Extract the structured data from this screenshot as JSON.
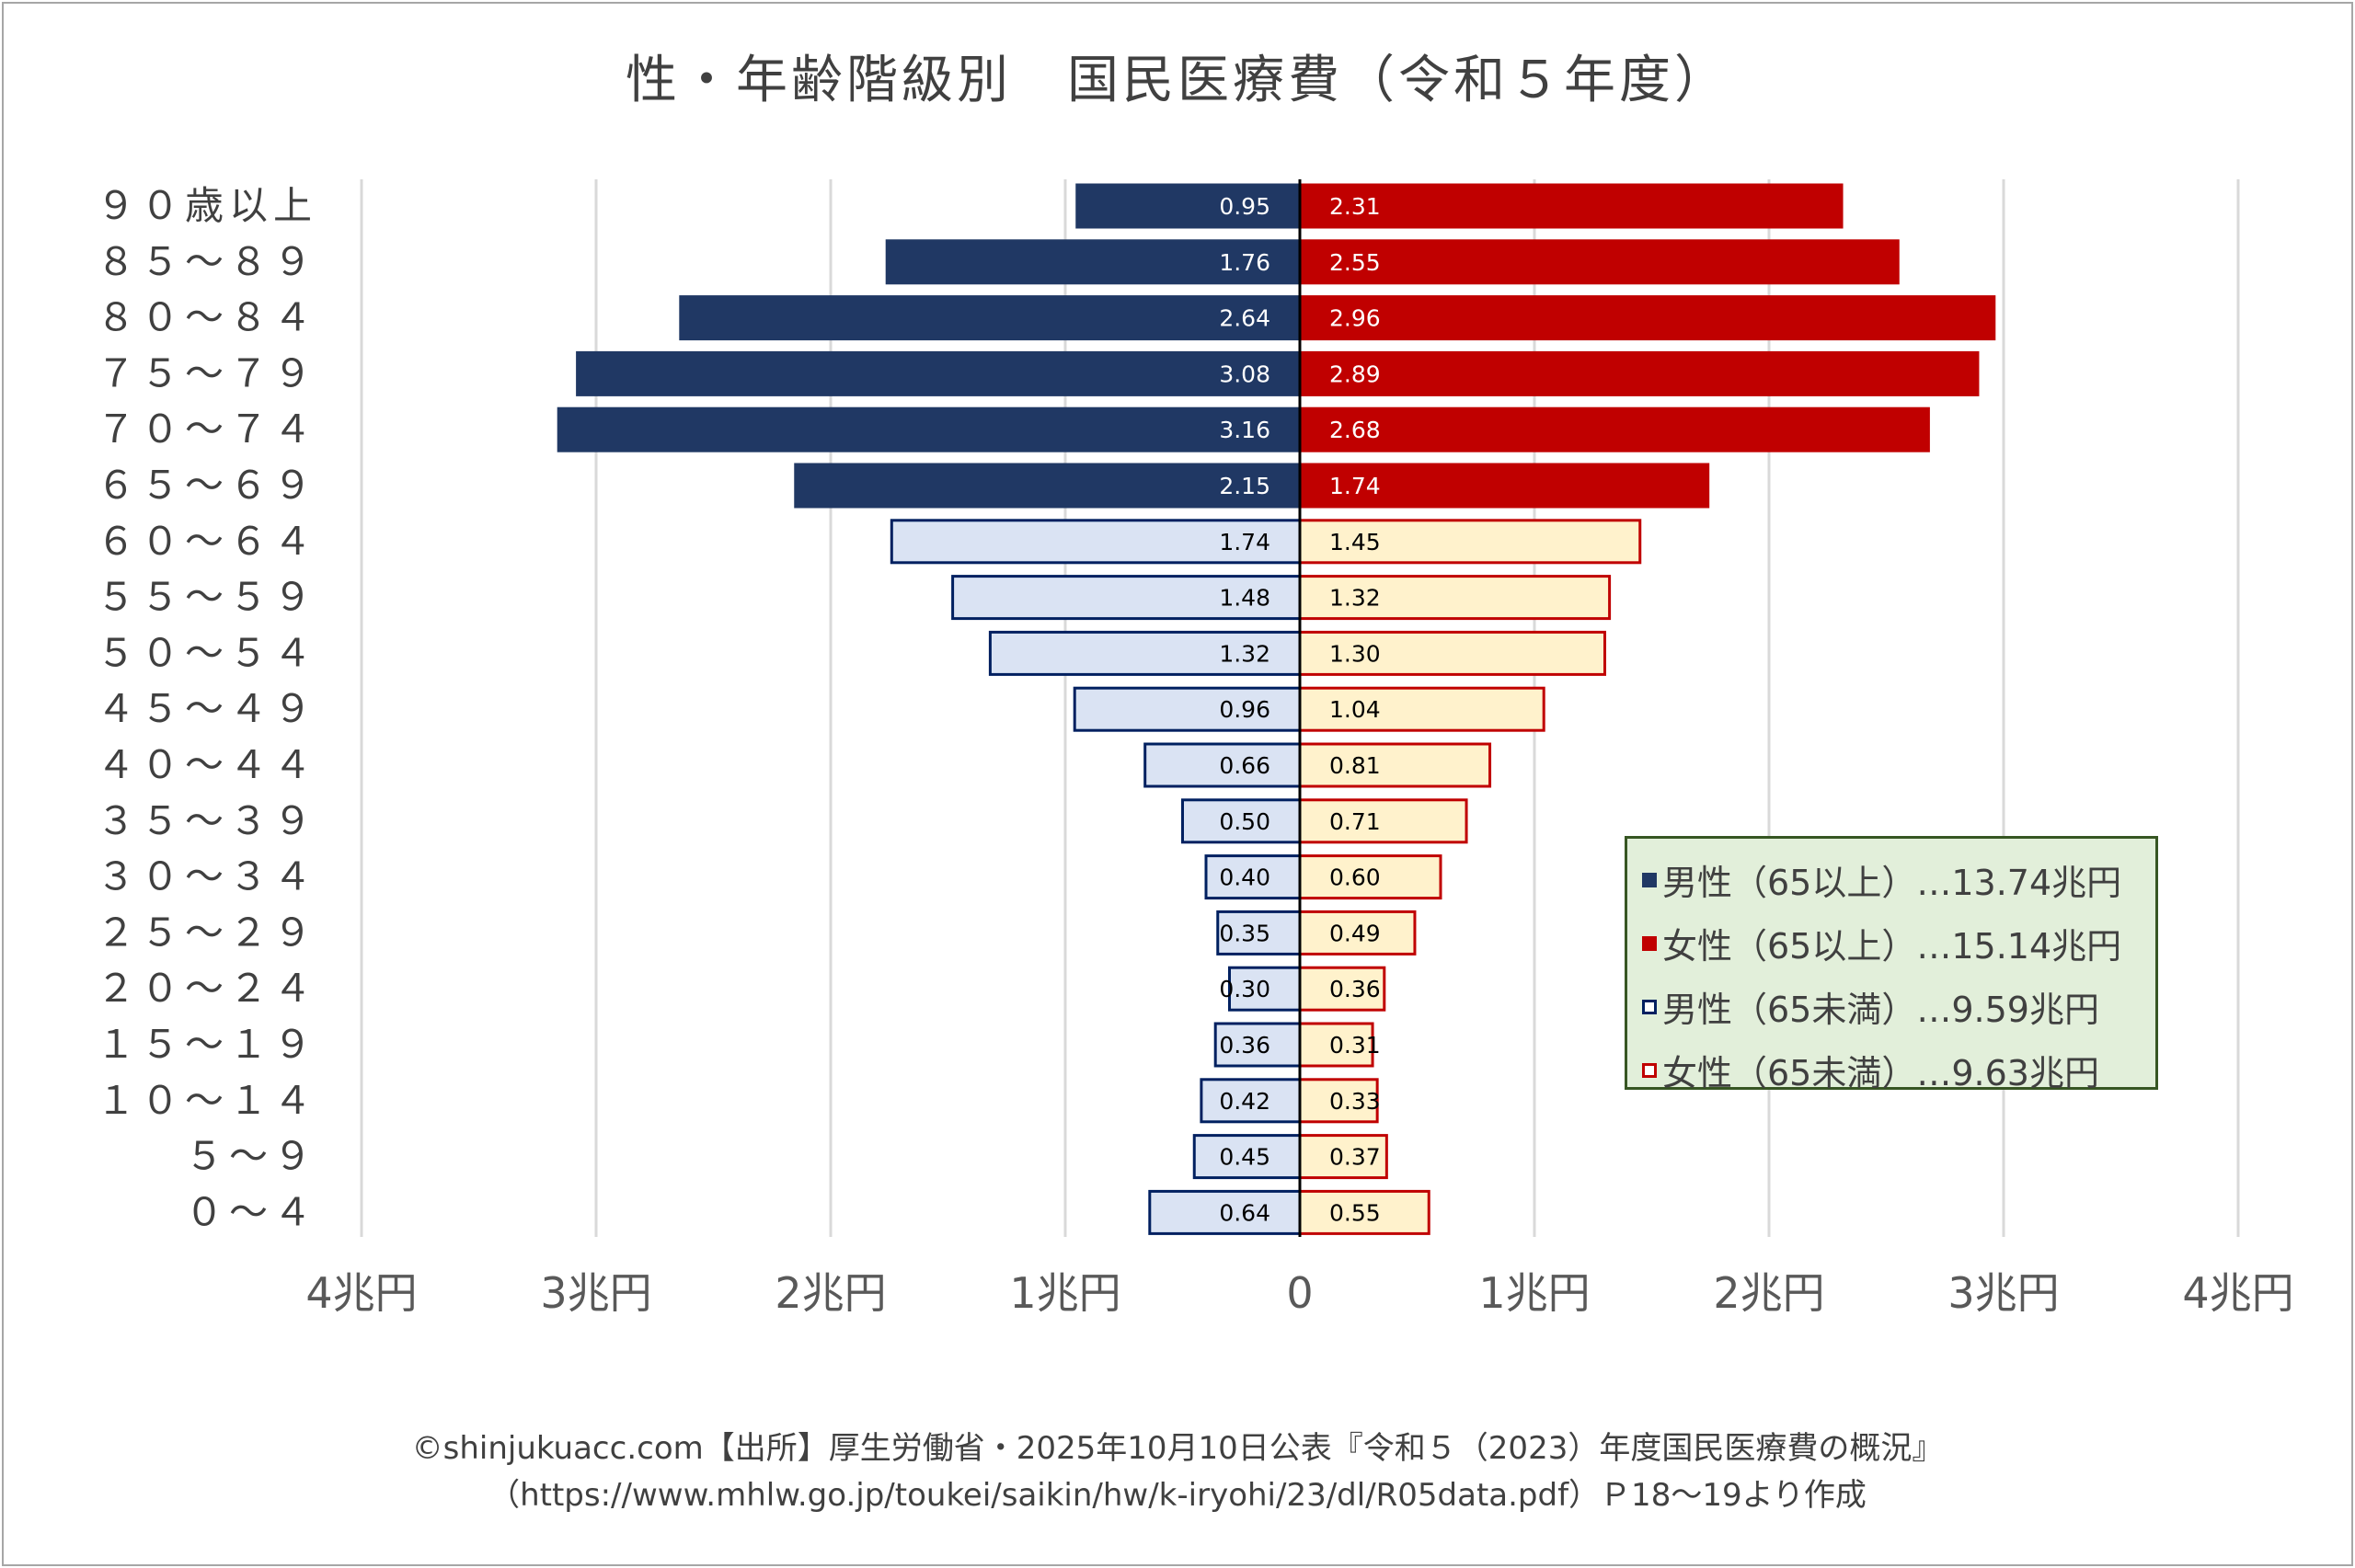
{
  "title": "性・年齢階級別　国民医療費（令和５年度）",
  "chart_data": {
    "type": "bar",
    "orientation": "horizontal-diverging",
    "title": "性・年齢階級別　国民医療費（令和５年度）",
    "categories": [
      "９０歳以上",
      "８５～８９",
      "８０～８４",
      "７５～７９",
      "７０～７４",
      "６５～６９",
      "６０～６４",
      "５５～５９",
      "５０～５４",
      "４５～４９",
      "４０～４４",
      "３５～３９",
      "３０～３４",
      "２５～２９",
      "２０～２４",
      "１５～１９",
      "１０～１４",
      "５～９",
      "０～４"
    ],
    "series": [
      {
        "name": "男性",
        "side": "left",
        "values": [
          0.95,
          1.76,
          2.64,
          3.08,
          3.16,
          2.15,
          1.74,
          1.48,
          1.32,
          0.96,
          0.66,
          0.5,
          0.4,
          0.35,
          0.3,
          0.36,
          0.42,
          0.45,
          0.64
        ]
      },
      {
        "name": "女性",
        "side": "right",
        "values": [
          2.31,
          2.55,
          2.96,
          2.89,
          2.68,
          1.74,
          1.45,
          1.32,
          1.3,
          1.04,
          0.81,
          0.71,
          0.6,
          0.49,
          0.36,
          0.31,
          0.33,
          0.37,
          0.55
        ]
      }
    ],
    "value_labels": {
      "male": [
        "0.95",
        "1.76",
        "2.64",
        "3.08",
        "3.16",
        "2.15",
        "1.74",
        "1.48",
        "1.32",
        "0.96",
        "0.66",
        "0.50",
        "0.40",
        "0.35",
        "0.30",
        "0.36",
        "0.42",
        "0.45",
        "0.64"
      ],
      "female": [
        "2.31",
        "2.55",
        "2.96",
        "2.89",
        "2.68",
        "1.74",
        "1.45",
        "1.32",
        "1.30",
        "1.04",
        "0.81",
        "0.71",
        "0.60",
        "0.49",
        "0.36",
        "0.31",
        "0.33",
        "0.37",
        "0.55"
      ]
    },
    "senior_count": 6,
    "xlim": [
      -4,
      4
    ],
    "xticks": [
      -4,
      -3,
      -2,
      -1,
      0,
      1,
      2,
      3,
      4
    ],
    "xtick_labels": [
      "4兆円",
      "3兆円",
      "2兆円",
      "1兆円",
      "0",
      "1兆円",
      "2兆円",
      "3兆円",
      "4兆円"
    ],
    "grid": true,
    "colors": {
      "male_65_plus": "#203864",
      "female_65_plus": "#c00000",
      "male_under_65_fill": "#dae3f3",
      "male_under_65_border": "#002060",
      "female_under_65_fill": "#fff2cc",
      "female_under_65_border": "#c00000",
      "grid": "#d9d9d9",
      "axis": "#000000"
    }
  },
  "legend": {
    "items": [
      {
        "label": "男性（65以上）…13.74兆円",
        "fill": "#203864",
        "border": "#203864"
      },
      {
        "label": "女性（65以上）…15.14兆円",
        "fill": "#c00000",
        "border": "#c00000"
      },
      {
        "label": "男性（65未満）…9.59兆円",
        "fill": "#ffffff",
        "border": "#002060"
      },
      {
        "label": "女性（65未満）…9.63兆円",
        "fill": "#ffffff",
        "border": "#c00000"
      }
    ]
  },
  "footer": {
    "line1": "©shinjukuacc.com【出所】厚生労働省・2025年10月10日公表『令和５（2023）年度国民医療費の概況』",
    "line2": "（https://www.mhlw.go.jp/toukei/saikin/hw/k-iryohi/23/dl/R05data.pdf）Ｐ18～19より作成"
  }
}
